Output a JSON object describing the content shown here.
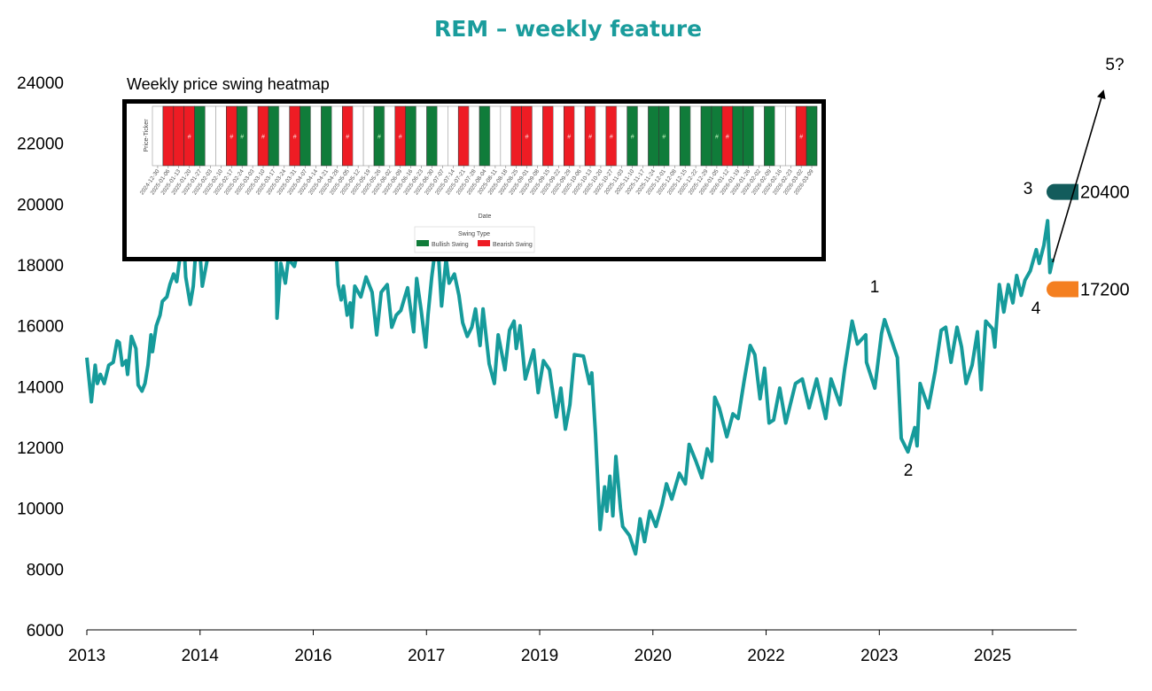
{
  "chart_data": {
    "type": "line",
    "title": "REM – weekly feature",
    "xlabel": "",
    "ylabel": "",
    "ylim": [
      6000,
      24000
    ],
    "yticks": [
      6000,
      8000,
      10000,
      12000,
      14000,
      16000,
      18000,
      20000,
      22000,
      24000
    ],
    "xlim": [
      2013.0,
      2026.1
    ],
    "xtick_labels": [
      "2013",
      "2014",
      "2016",
      "2017",
      "2019",
      "2020",
      "2022",
      "2023",
      "2025"
    ],
    "grid": false,
    "line_color": "#169b9b",
    "series": [
      {
        "x": [
          2013.0,
          2013.06,
          2013.11,
          2013.14,
          2013.18,
          2013.23,
          2013.29,
          2013.35,
          2013.4,
          2013.43,
          2013.47,
          2013.52,
          2013.54,
          2013.59,
          2013.65,
          2013.68,
          2013.73,
          2013.77,
          2013.81,
          2013.85,
          2013.87,
          2013.92,
          2013.97,
          2014.0,
          2014.06,
          2014.1,
          2014.15,
          2014.19,
          2014.23,
          2014.28,
          2014.31,
          2014.37,
          2014.41,
          2014.47,
          2014.53,
          2014.67,
          2014.9,
          2015.14,
          2015.37,
          2015.51,
          2015.52,
          2015.57,
          2015.63,
          2015.67,
          2015.75,
          2015.84,
          2015.96,
          2016.13,
          2016.31,
          2016.33,
          2016.37,
          2016.4,
          2016.45,
          2016.49,
          2016.51,
          2016.55,
          2016.63,
          2016.7,
          2016.78,
          2016.84,
          2016.9,
          2016.98,
          2017.04,
          2017.1,
          2017.16,
          2017.22,
          2017.25,
          2017.33,
          2017.37,
          2017.43,
          2017.49,
          2017.52,
          2017.57,
          2017.6,
          2017.65,
          2017.7,
          2017.76,
          2017.8,
          2017.87,
          2017.93,
          2017.98,
          2018.04,
          2018.1,
          2018.15,
          2018.21,
          2018.25,
          2018.33,
          2018.4,
          2018.45,
          2018.54,
          2018.6,
          2018.66,
          2018.69,
          2018.74,
          2018.81,
          2018.92,
          2018.98,
          2019.05,
          2019.13,
          2019.22,
          2019.28,
          2019.34,
          2019.4,
          2019.46,
          2019.58,
          2019.66,
          2019.69,
          2019.74,
          2019.8,
          2019.86,
          2019.89,
          2019.93,
          2019.97,
          2020.01,
          2020.07,
          2020.1,
          2020.19,
          2020.27,
          2020.33,
          2020.39,
          2020.46,
          2020.54,
          2020.62,
          2020.68,
          2020.75,
          2020.85,
          2020.93,
          2020.98,
          2021.07,
          2021.15,
          2021.22,
          2021.28,
          2021.32,
          2021.38,
          2021.48,
          2021.56,
          2021.63,
          2021.71,
          2021.79,
          2021.85,
          2021.92,
          2021.98,
          2022.04,
          2022.1,
          2022.18,
          2022.26,
          2022.33,
          2022.39,
          2022.48,
          2022.57,
          2022.67,
          2022.79,
          2022.86,
          2022.98,
          2023.04,
          2023.14,
          2023.21,
          2023.32,
          2023.33,
          2023.44,
          2023.53,
          2023.57,
          2023.65,
          2023.74,
          2023.79,
          2023.88,
          2023.97,
          2024.0,
          2024.04,
          2024.15,
          2024.24,
          2024.32,
          2024.38,
          2024.45,
          2024.53,
          2024.59,
          2024.65,
          2024.73,
          2024.8,
          2024.85,
          2024.91,
          2025.0,
          2025.03,
          2025.09,
          2025.15,
          2025.21,
          2025.27,
          2025.32,
          2025.38,
          2025.43,
          2025.5,
          2025.58,
          2025.62,
          2025.68,
          2025.73,
          2025.76,
          2025.8
        ],
        "values": [
          14950,
          13500,
          14700,
          14100,
          14400,
          14100,
          14700,
          14800,
          15500,
          15450,
          14700,
          14850,
          14400,
          15650,
          15250,
          14050,
          13850,
          14100,
          14700,
          15700,
          15150,
          16000,
          16350,
          16800,
          16950,
          17350,
          17700,
          17450,
          18200,
          19000,
          17600,
          16700,
          17300,
          19400,
          17300,
          19150,
          19700,
          20300,
          19450,
          18200,
          16250,
          18050,
          17400,
          18200,
          17950,
          19000,
          18200,
          18850,
          18200,
          17350,
          16850,
          17300,
          16350,
          16750,
          15950,
          17300,
          16950,
          17600,
          17100,
          15700,
          17100,
          17350,
          15950,
          16350,
          16500,
          17000,
          17250,
          15800,
          17550,
          16500,
          15300,
          16350,
          17600,
          18200,
          18700,
          16650,
          18200,
          17400,
          17700,
          17000,
          16100,
          15650,
          15950,
          16550,
          15350,
          16550,
          14750,
          14100,
          15700,
          14550,
          15850,
          16150,
          15250,
          16000,
          14250,
          15200,
          13800,
          14850,
          14550,
          13000,
          13950,
          12600,
          13400,
          15050,
          15000,
          14100,
          14450,
          12450,
          9300,
          10700,
          9900,
          11050,
          9750,
          11700,
          10000,
          9400,
          9100,
          8500,
          9650,
          8900,
          9900,
          9400,
          10100,
          10800,
          10300,
          11150,
          10800,
          12100,
          11550,
          11000,
          11950,
          11550,
          13650,
          13300,
          12350,
          13100,
          12950,
          14200,
          15350,
          15050,
          13600,
          14600,
          12800,
          12900,
          13950,
          12800,
          13500,
          14100,
          14250,
          13300,
          14250,
          12950,
          14250,
          13400,
          14550,
          16150,
          15400,
          15700,
          14800,
          13950,
          15750,
          16200,
          15600,
          14950,
          12300,
          11850,
          12650,
          12050,
          14100,
          13300,
          14500,
          15850,
          15950,
          14800,
          15950,
          15300,
          14100,
          14700,
          15800,
          13900,
          16150,
          15900,
          15300,
          17350,
          16450,
          17350,
          16750,
          17650,
          17000,
          17500,
          17800,
          18500,
          18050,
          18650,
          19450,
          17750,
          18200
        ]
      }
    ],
    "annotations": {
      "wave_labels": [
        "1",
        "2",
        "3",
        "4",
        "5?"
      ],
      "targets": [
        {
          "label": "20400",
          "value": 20400,
          "color": "#135c5c"
        },
        {
          "label": "17200",
          "value": 17200,
          "color": "#f47f20"
        }
      ]
    },
    "inset_heatmap": {
      "type": "heatmap",
      "title": "Weekly price swing heatmap",
      "ylabel": "Price-Ticker",
      "xlabel": "Date",
      "legend_title": "Swing Type",
      "legend": [
        {
          "label": "Bullish Swing",
          "color": "#107c3a"
        },
        {
          "label": "Bearish Swing",
          "color": "#ee1c24"
        }
      ],
      "dates": [
        "2024-12-30",
        "2025-01-06",
        "2025-01-13",
        "2025-01-20",
        "2025-01-27",
        "2025-02-03",
        "2025-02-10",
        "2025-02-17",
        "2025-02-24",
        "2025-03-03",
        "2025-03-10",
        "2025-03-17",
        "2025-03-24",
        "2025-03-31",
        "2025-04-07",
        "2025-04-14",
        "2025-04-21",
        "2025-04-28",
        "2025-05-05",
        "2025-05-12",
        "2025-05-19",
        "2025-05-26",
        "2025-06-02",
        "2025-06-09",
        "2025-06-16",
        "2025-06-23",
        "2025-06-30",
        "2025-07-07",
        "2025-07-14",
        "2025-07-21",
        "2025-07-28",
        "2025-08-04",
        "2025-08-11",
        "2025-08-18",
        "2025-08-25",
        "2025-09-01",
        "2025-09-08",
        "2025-09-15",
        "2025-09-22",
        "2025-09-29",
        "2025-10-06",
        "2025-10-13",
        "2025-10-20",
        "2025-10-27",
        "2025-11-03",
        "2025-11-10",
        "2025-11-17",
        "2025-11-24",
        "2025-12-01",
        "2025-12-08",
        "2025-12-15",
        "2025-12-22",
        "2025-12-29",
        "2026-01-05",
        "2026-01-12",
        "2026-01-19",
        "2026-01-26",
        "2026-02-02",
        "2026-02-09",
        "2026-02-16",
        "2026-02-23",
        "2026-03-02",
        "2026-03-09"
      ],
      "swings": [
        "",
        "bearish",
        "bearish",
        "bearish",
        "bullish",
        "",
        "",
        "bearish",
        "bullish",
        "",
        "bearish",
        "bullish",
        "",
        "bearish",
        "bullish",
        "",
        "bullish",
        "",
        "bearish",
        "",
        "",
        "bullish",
        "",
        "bearish",
        "bullish",
        "",
        "bullish",
        "",
        "",
        "bearish",
        "",
        "bullish",
        "",
        "",
        "bearish",
        "bearish",
        "",
        "bearish",
        "",
        "bearish",
        "",
        "bearish",
        "",
        "bearish",
        "",
        "bullish",
        "",
        "bullish",
        "bullish",
        "",
        "bullish",
        "",
        "bullish",
        "bullish",
        "bearish",
        "bullish",
        "bullish",
        "",
        "bullish",
        "",
        "",
        "bearish",
        "bullish"
      ],
      "marks": [
        "",
        "",
        "",
        "#",
        "",
        "",
        "",
        "#",
        "#",
        "",
        "#",
        "",
        "",
        "#",
        "",
        "",
        "",
        "",
        "#",
        "",
        "",
        "#",
        "",
        "#",
        "",
        "",
        "",
        "",
        "",
        "",
        "",
        "",
        "",
        "",
        "",
        "#",
        "",
        "",
        "",
        "#",
        "",
        "#",
        "",
        "#",
        "",
        "#",
        "",
        "",
        "#",
        "",
        "",
        "",
        "",
        "#",
        "#",
        "",
        "",
        "",
        "",
        "",
        "",
        "#",
        ""
      ]
    }
  }
}
